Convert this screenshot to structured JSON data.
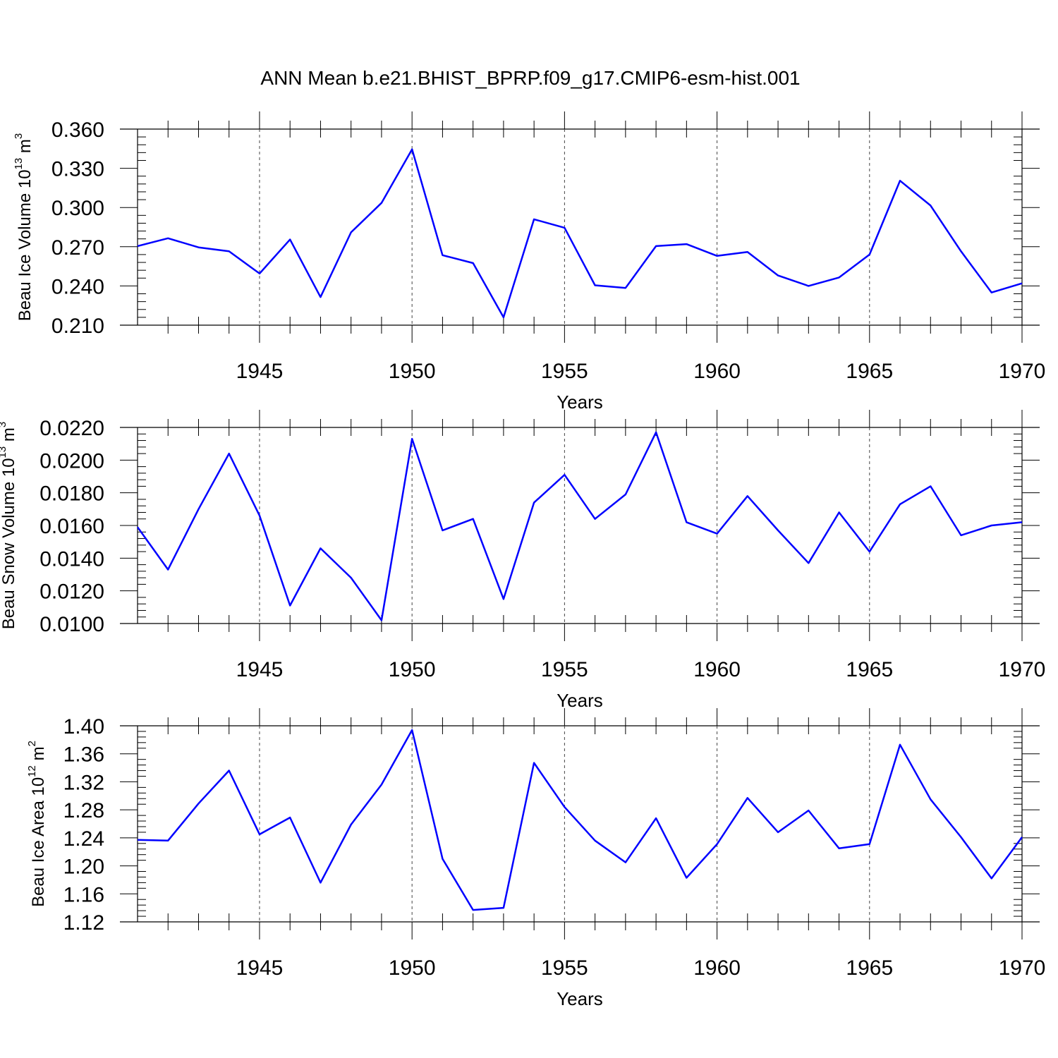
{
  "title": "ANN Mean b.e21.BHIST_BPRP.f09_g17.CMIP6-esm-hist.001",
  "colors": {
    "series": "#0000ff",
    "axis": "#000000",
    "grid": "#444444"
  },
  "chart_data": [
    {
      "type": "line",
      "ylabel": {
        "prefix": "Beau Ice Volume 10",
        "exponent": "13",
        "unit": " m",
        "unit_exponent": "3"
      },
      "xlabel": "Years",
      "xlim": [
        1941,
        1970
      ],
      "ylim": [
        0.21,
        0.36
      ],
      "yticks": [
        "0.210",
        "0.240",
        "0.270",
        "0.300",
        "0.330",
        "0.360"
      ],
      "xticks": [
        "1945",
        "1950",
        "1955",
        "1960",
        "1965",
        "1970"
      ],
      "grid": "vertical dashed at major x ticks",
      "series": [
        {
          "x": [
            1941,
            1942,
            1943,
            1944,
            1945,
            1946,
            1947,
            1948,
            1949,
            1950,
            1951,
            1952,
            1953,
            1954,
            1955,
            1956,
            1957,
            1958,
            1959,
            1960,
            1961,
            1962,
            1963,
            1964,
            1965,
            1966,
            1967,
            1968,
            1969,
            1970
          ],
          "values": [
            0.2705,
            0.2765,
            0.2695,
            0.2665,
            0.2495,
            0.2755,
            0.2315,
            0.281,
            0.3035,
            0.3445,
            0.2635,
            0.2575,
            0.216,
            0.291,
            0.2845,
            0.2405,
            0.2385,
            0.2705,
            0.272,
            0.263,
            0.266,
            0.248,
            0.24,
            0.2465,
            0.264,
            0.3205,
            0.3015,
            0.2665,
            0.235,
            0.242
          ]
        }
      ]
    },
    {
      "type": "line",
      "ylabel": {
        "prefix": "Beau Snow Volume 10",
        "exponent": "13",
        "unit": " m",
        "unit_exponent": "3"
      },
      "xlabel": "Years",
      "xlim": [
        1941,
        1970
      ],
      "ylim": [
        0.01,
        0.022
      ],
      "yticks": [
        "0.0100",
        "0.0120",
        "0.0140",
        "0.0160",
        "0.0180",
        "0.0200",
        "0.0220"
      ],
      "xticks": [
        "1945",
        "1950",
        "1955",
        "1960",
        "1965",
        "1970"
      ],
      "grid": "vertical dashed at major x ticks",
      "series": [
        {
          "x": [
            1941,
            1942,
            1943,
            1944,
            1945,
            1946,
            1947,
            1948,
            1949,
            1950,
            1951,
            1952,
            1953,
            1954,
            1955,
            1956,
            1957,
            1958,
            1959,
            1960,
            1961,
            1962,
            1963,
            1964,
            1965,
            1966,
            1967,
            1968,
            1969,
            1970
          ],
          "values": [
            0.0159,
            0.0133,
            0.017,
            0.0204,
            0.0166,
            0.0111,
            0.0146,
            0.0128,
            0.0102,
            0.0213,
            0.0157,
            0.0164,
            0.0115,
            0.0174,
            0.0191,
            0.0164,
            0.0179,
            0.0217,
            0.0162,
            0.0155,
            0.0178,
            0.0157,
            0.0137,
            0.0168,
            0.0144,
            0.0173,
            0.0184,
            0.0154,
            0.016,
            0.0162
          ]
        }
      ]
    },
    {
      "type": "line",
      "ylabel": {
        "prefix": "Beau Ice Area 10",
        "exponent": "12",
        "unit": " m",
        "unit_exponent": "2"
      },
      "xlabel": "Years",
      "xlim": [
        1941,
        1970
      ],
      "ylim": [
        1.12,
        1.4
      ],
      "yticks": [
        "1.12",
        "1.16",
        "1.20",
        "1.24",
        "1.28",
        "1.32",
        "1.36",
        "1.40"
      ],
      "xticks": [
        "1945",
        "1950",
        "1955",
        "1960",
        "1965",
        "1970"
      ],
      "grid": "vertical dashed at major x ticks",
      "series": [
        {
          "x": [
            1941,
            1942,
            1943,
            1944,
            1945,
            1946,
            1947,
            1948,
            1949,
            1950,
            1951,
            1952,
            1953,
            1954,
            1955,
            1956,
            1957,
            1958,
            1959,
            1960,
            1961,
            1962,
            1963,
            1964,
            1965,
            1966,
            1967,
            1968,
            1969,
            1970
          ],
          "values": [
            1.237,
            1.236,
            1.289,
            1.336,
            1.245,
            1.269,
            1.176,
            1.259,
            1.316,
            1.394,
            1.21,
            1.137,
            1.14,
            1.347,
            1.284,
            1.236,
            1.205,
            1.268,
            1.183,
            1.231,
            1.297,
            1.248,
            1.279,
            1.225,
            1.231,
            1.373,
            1.295,
            1.241,
            1.182,
            1.241
          ]
        }
      ]
    }
  ]
}
